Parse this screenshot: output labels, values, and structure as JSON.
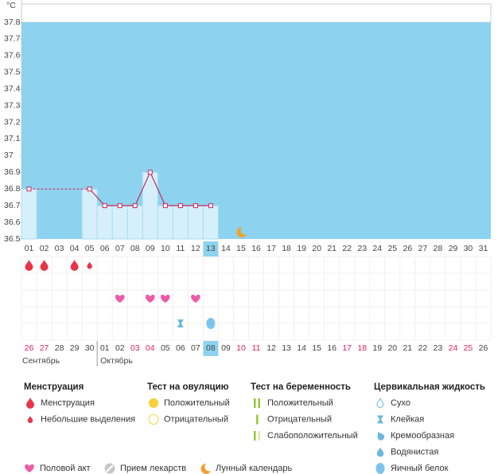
{
  "chart_data": {
    "type": "line",
    "y_unit": "°C",
    "categories": [
      "01",
      "02",
      "03",
      "04",
      "05",
      "06",
      "07",
      "08",
      "09",
      "10",
      "11",
      "12",
      "13",
      "14",
      "15",
      "16",
      "17",
      "18",
      "19",
      "20",
      "21",
      "22",
      "23",
      "24",
      "25",
      "26",
      "27",
      "28",
      "29",
      "30",
      "31"
    ],
    "values": [
      36.8,
      null,
      null,
      null,
      36.8,
      36.7,
      36.7,
      36.7,
      36.9,
      36.7,
      36.7,
      36.7,
      36.7,
      null,
      null,
      null,
      null,
      null,
      null,
      null,
      null,
      null,
      null,
      null,
      null,
      null,
      null,
      null,
      null,
      null,
      null
    ],
    "color": "#c8285a",
    "ylim": [
      36.5,
      37.8
    ],
    "yticks": [
      36.5,
      36.6,
      36.7,
      36.8,
      36.9,
      37,
      37.1,
      37.2,
      37.3,
      37.4,
      37.5,
      37.6,
      37.7,
      37.8
    ],
    "today": "13"
  },
  "calendar": {
    "dates": [
      "26",
      "27",
      "28",
      "29",
      "30",
      "01",
      "02",
      "03",
      "04",
      "05",
      "06",
      "07",
      "08",
      "09",
      "10",
      "11",
      "12",
      "13",
      "14",
      "15",
      "16",
      "17",
      "18",
      "19",
      "20",
      "21",
      "22",
      "23",
      "24",
      "25",
      "26"
    ],
    "weekend": [
      true,
      true,
      false,
      false,
      false,
      false,
      false,
      true,
      true,
      false,
      false,
      false,
      false,
      false,
      true,
      true,
      false,
      false,
      false,
      false,
      false,
      true,
      true,
      false,
      false,
      false,
      false,
      false,
      true,
      true,
      false
    ],
    "highlight": "08",
    "months": [
      "Сентябрь",
      "Октябрь"
    ]
  },
  "legend": {
    "groups": [
      {
        "title": "Менструация",
        "items": [
          {
            "label": "Менструация",
            "days": [
              "01",
              "02",
              "04"
            ]
          },
          {
            "label": "Небольшие выделения",
            "days": [
              "05"
            ]
          }
        ]
      },
      {
        "title": "Тест на овуляцию",
        "items": [
          {
            "label": "Положительный",
            "days": []
          },
          {
            "label": "Отрицательный",
            "days": []
          }
        ]
      },
      {
        "title": "Тест на беременность",
        "items": [
          {
            "label": "Положительный",
            "days": []
          },
          {
            "label": "Отрицательный",
            "days": []
          },
          {
            "label": "Слабоположительный",
            "days": []
          }
        ]
      },
      {
        "title": "Цервикальная жидкость",
        "items": [
          {
            "label": "Сухо",
            "days": []
          },
          {
            "label": "Клейкая",
            "days": [
              "11"
            ]
          },
          {
            "label": "Кремообразная",
            "days": []
          },
          {
            "label": "Водянистая",
            "days": []
          },
          {
            "label": "Яичный белок",
            "days": [
              "13"
            ]
          }
        ]
      }
    ],
    "extras": [
      {
        "label": "Половой акт",
        "days": [
          "07",
          "09",
          "10",
          "12"
        ]
      },
      {
        "label": "Прием лекарств",
        "days": []
      },
      {
        "label": "Лунный календарь",
        "days": [
          "15"
        ]
      }
    ]
  }
}
